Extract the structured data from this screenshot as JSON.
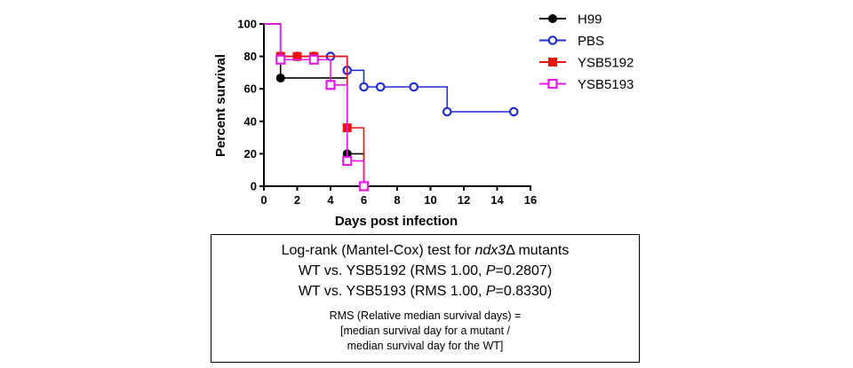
{
  "chart_data": {
    "type": "line",
    "step": true,
    "xlabel": "Days post infection",
    "ylabel": "Percent survival",
    "xlim": [
      0,
      16
    ],
    "ylim": [
      0,
      100
    ],
    "xticks": [
      0,
      2,
      4,
      6,
      8,
      10,
      12,
      14,
      16
    ],
    "yticks": [
      0,
      20,
      40,
      60,
      80,
      100
    ],
    "grid": false,
    "legend_position": "top-right",
    "series": [
      {
        "name": "H99",
        "color": "#000000",
        "marker": "filled-circle",
        "steps": [
          [
            0,
            100
          ],
          [
            1,
            66.7
          ],
          [
            5,
            20
          ],
          [
            6,
            0
          ]
        ],
        "points": [
          [
            1,
            66.7
          ],
          [
            5,
            20
          ],
          [
            6,
            0
          ]
        ]
      },
      {
        "name": "PBS",
        "color": "#1f2fd0",
        "marker": "open-circle",
        "steps": [
          [
            0,
            100
          ],
          [
            1,
            80
          ],
          [
            5,
            71.4
          ],
          [
            6,
            61.2
          ],
          [
            11,
            45.9
          ]
        ],
        "end_x": 15,
        "points": [
          [
            1,
            80
          ],
          [
            2,
            80
          ],
          [
            3,
            80
          ],
          [
            4,
            80
          ],
          [
            5,
            71.4
          ],
          [
            6,
            61.2
          ],
          [
            7,
            61.2
          ],
          [
            9,
            61.2
          ],
          [
            11,
            45.9
          ],
          [
            15,
            45.9
          ]
        ]
      },
      {
        "name": "YSB5192",
        "color": "#ee1111",
        "marker": "filled-square",
        "steps": [
          [
            0,
            100
          ],
          [
            1,
            80
          ],
          [
            5,
            36
          ],
          [
            6,
            0
          ]
        ],
        "points": [
          [
            1,
            80
          ],
          [
            2,
            80
          ],
          [
            3,
            80
          ],
          [
            5,
            36
          ],
          [
            6,
            0
          ]
        ]
      },
      {
        "name": "YSB5193",
        "color": "#e619e6",
        "marker": "open-square",
        "steps": [
          [
            0,
            100
          ],
          [
            1,
            78
          ],
          [
            4,
            62.4
          ],
          [
            5,
            15.6
          ],
          [
            6,
            0
          ]
        ],
        "points": [
          [
            1,
            78
          ],
          [
            3,
            78
          ],
          [
            4,
            62.4
          ],
          [
            5,
            15.6
          ],
          [
            6,
            0
          ]
        ]
      }
    ]
  },
  "stats_box": {
    "line1_pre": "Log-rank (Mantel-Cox) test for ",
    "line1_gene": "ndx3",
    "line1_post": "Δ mutants",
    "line2_pre": "WT vs. YSB5192 (RMS 1.00, ",
    "line2_p": "P",
    "line2_post": "=0.2807)",
    "line3_pre": "WT vs. YSB5193 (RMS 1.00, ",
    "line3_p": "P",
    "line3_post": "=0.8330)",
    "note1": "RMS (Relative median survival days) =",
    "note2": "[median survival day for a mutant  /",
    "note3": "median survival day for the WT]"
  }
}
